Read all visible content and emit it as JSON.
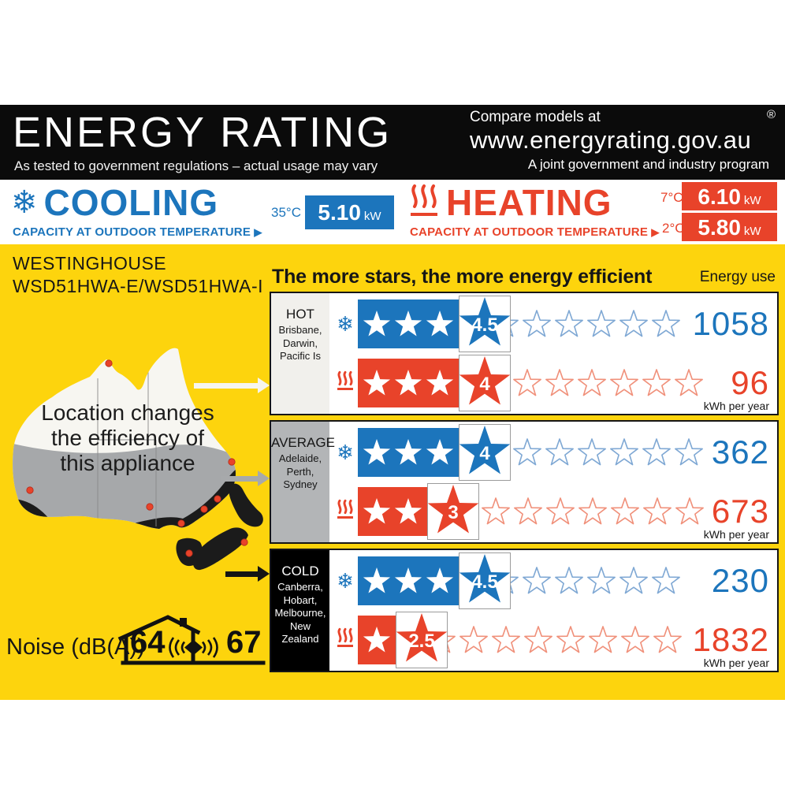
{
  "header": {
    "title": "ENERGY RATING",
    "subtitle": "As tested to government regulations – actual usage may vary",
    "compare_line": "Compare models at",
    "url": "www.energyrating.gov.au",
    "registered_mark": "®",
    "program_line": "A joint government and industry program"
  },
  "capacity": {
    "cooling": {
      "title": "COOLING",
      "subtitle": "CAPACITY AT OUTDOOR TEMPERATURE",
      "pointer": "▶",
      "entries": [
        {
          "temp": "35°C",
          "value": "5.10",
          "unit": "kW"
        }
      ]
    },
    "heating": {
      "title": "HEATING",
      "subtitle": "CAPACITY AT OUTDOOR TEMPERATURE",
      "pointer": "▶",
      "entries": [
        {
          "temp": "7°C",
          "value": "6.10",
          "unit": "kW"
        },
        {
          "temp": "2°C",
          "value": "5.80",
          "unit": "kW"
        }
      ]
    }
  },
  "main": {
    "brand": "WESTINGHOUSE",
    "model": "WSD51HWA-E/WSD51HWA-I",
    "stars_heading": "The more stars, the more energy efficient",
    "energy_use_label": "Energy use",
    "map_caption_lines": [
      "Location changes",
      "the efficiency of",
      "this appliance"
    ],
    "zones": [
      {
        "name": "HOT",
        "cities": [
          "Brisbane,",
          "Darwin,",
          "Pacific Is"
        ],
        "label_bg": "#f1f0ec",
        "label_color": "#161616",
        "cooling": {
          "bar_stars": 3,
          "rating": "4.5",
          "half": true,
          "outline": 5,
          "value": "1058"
        },
        "heating": {
          "bar_stars": 3,
          "rating": "4",
          "half": false,
          "outline": 6,
          "value": "96"
        },
        "unit": "kWh per year"
      },
      {
        "name": "AVERAGE",
        "cities": [
          "Adelaide,",
          "Perth,",
          "Sydney"
        ],
        "label_bg": "#b3b5b7",
        "label_color": "#161616",
        "cooling": {
          "bar_stars": 3,
          "rating": "4",
          "half": false,
          "outline": 6,
          "value": "362"
        },
        "heating": {
          "bar_stars": 2,
          "rating": "3",
          "half": false,
          "outline": 7,
          "value": "673"
        },
        "unit": "kWh per year"
      },
      {
        "name": "COLD",
        "cities": [
          "Canberra,",
          "Hobart,",
          "Melbourne,",
          "New Zealand"
        ],
        "label_bg": "#000000",
        "label_color": "#ffffff",
        "cooling": {
          "bar_stars": 3,
          "rating": "4.5",
          "half": true,
          "outline": 5,
          "value": "230"
        },
        "heating": {
          "bar_stars": 1,
          "rating": "2.5",
          "half": true,
          "outline": 7,
          "value": "1832"
        },
        "unit": "kWh per year"
      }
    ],
    "noise": {
      "label": "Noise (dB(A))",
      "indoor_db": "64",
      "outdoor_db": "67"
    }
  },
  "icons": {
    "snowflake": "❄"
  },
  "colors": {
    "blue": "#1c75bc",
    "red": "#e8432a",
    "blue_outline": "#7fa8d4",
    "red_outline": "#f0907a",
    "yellow": "#fdd40d"
  }
}
